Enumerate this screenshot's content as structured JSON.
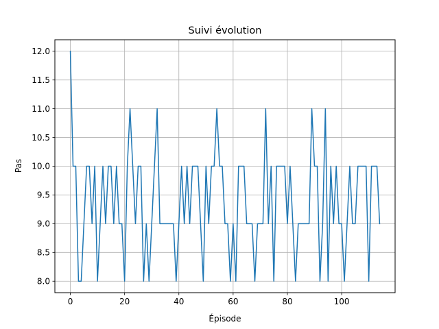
{
  "chart_data": {
    "type": "line",
    "title": "Suivi évolution",
    "xlabel": "Épisode",
    "ylabel": "Pas",
    "xlim": [
      -5.7,
      119.7
    ],
    "ylim": [
      7.8,
      12.2
    ],
    "xticks": [
      0,
      20,
      40,
      60,
      80,
      100
    ],
    "yticks": [
      8.0,
      8.5,
      9.0,
      9.5,
      10.0,
      10.5,
      11.0,
      11.5,
      12.0
    ],
    "ytick_labels": [
      "8.0",
      "8.5",
      "9.0",
      "9.5",
      "10.0",
      "10.5",
      "11.0",
      "11.5",
      "12.0"
    ],
    "grid": true,
    "line_color": "#1f77b4",
    "series": [
      {
        "x": [
          0,
          1,
          2,
          3,
          4,
          5,
          6,
          7,
          8,
          9,
          10,
          11,
          12,
          13,
          14,
          15,
          16,
          17,
          18,
          19,
          20,
          21,
          22,
          23,
          24,
          25,
          26,
          27,
          28,
          29,
          30,
          31,
          32,
          33,
          34,
          35,
          36,
          37,
          38,
          39,
          40,
          41,
          42,
          43,
          44,
          45,
          46,
          47,
          48,
          49,
          50,
          51,
          52,
          53,
          54,
          55,
          56,
          57,
          58,
          59,
          60,
          61,
          62,
          63,
          64,
          65,
          66,
          67,
          68,
          69,
          70,
          71,
          72,
          73,
          74,
          75,
          76,
          77,
          78,
          79,
          80,
          81,
          82,
          83,
          84,
          85,
          86,
          87,
          88,
          89,
          90,
          91,
          92,
          93,
          94,
          95,
          96,
          97,
          98,
          99,
          100,
          101,
          102,
          103,
          104,
          105,
          106,
          107,
          108,
          109,
          110,
          111,
          112,
          113,
          114
        ],
        "y": [
          12,
          10,
          10,
          8,
          8,
          9,
          10,
          10,
          9,
          10,
          8,
          9,
          10,
          9,
          10,
          10,
          9,
          10,
          9,
          9,
          8,
          10,
          11,
          10,
          9,
          10,
          10,
          8,
          9,
          8,
          9,
          10,
          11,
          9,
          9,
          9,
          9,
          9,
          9,
          8,
          9,
          10,
          9,
          10,
          9,
          10,
          10,
          10,
          9,
          8,
          10,
          9,
          10,
          10,
          11,
          10,
          10,
          9,
          9,
          8,
          9,
          8,
          10,
          10,
          10,
          9,
          9,
          9,
          8,
          9,
          9,
          9,
          11,
          9,
          10,
          8,
          10,
          10,
          10,
          10,
          9,
          10,
          9,
          8,
          9,
          9,
          9,
          9,
          9,
          11,
          10,
          10,
          8,
          9,
          11,
          8,
          10,
          9,
          10,
          9,
          9,
          8,
          9,
          10,
          9,
          9,
          10,
          10,
          10,
          10,
          8,
          10,
          10,
          10,
          9
        ]
      }
    ]
  }
}
